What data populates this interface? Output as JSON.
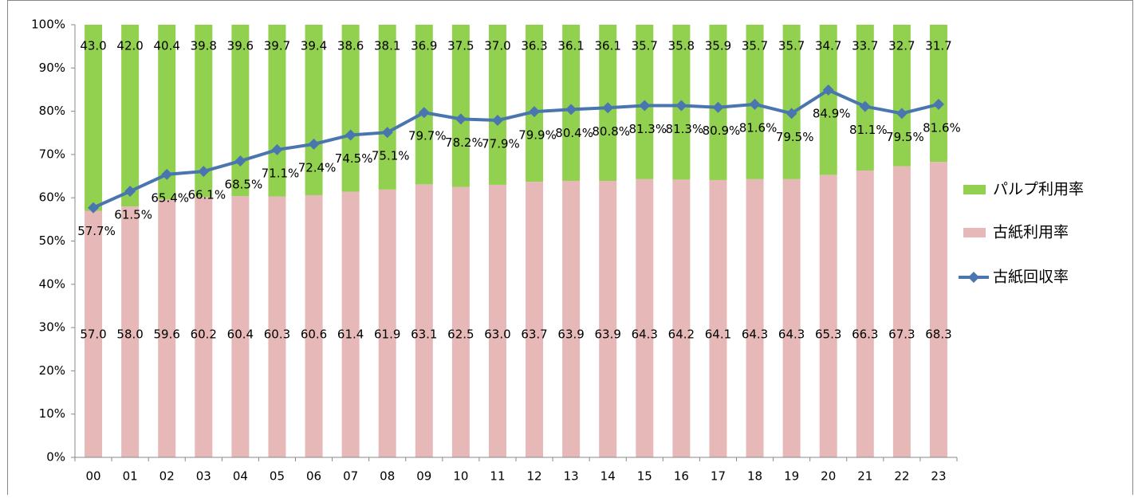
{
  "chart_data": {
    "type": "bar",
    "stacked": true,
    "categories": [
      "00",
      "01",
      "02",
      "03",
      "04",
      "05",
      "06",
      "07",
      "08",
      "09",
      "10",
      "11",
      "12",
      "13",
      "14",
      "15",
      "16",
      "17",
      "18",
      "19",
      "20",
      "21",
      "22",
      "23"
    ],
    "series": [
      {
        "name": "パルプ利用率",
        "color": "#92d050",
        "values": [
          43.0,
          42.0,
          40.4,
          39.8,
          39.6,
          39.7,
          39.4,
          38.6,
          38.1,
          36.9,
          37.5,
          37.0,
          36.3,
          36.1,
          36.1,
          35.7,
          35.8,
          35.9,
          35.7,
          35.7,
          34.7,
          33.7,
          32.7,
          31.7
        ],
        "value_labels": [
          "43.0",
          "42.0",
          "40.4",
          "39.8",
          "39.6",
          "39.7",
          "39.4",
          "38.6",
          "38.1",
          "36.9",
          "37.5",
          "37.0",
          "36.3",
          "36.1",
          "36.1",
          "35.7",
          "35.8",
          "35.9",
          "35.7",
          "35.7",
          "34.7",
          "33.7",
          "32.7",
          "31.7"
        ]
      },
      {
        "name": "古紙利用率",
        "color": "#e6b9b8",
        "values": [
          57.0,
          58.0,
          59.6,
          60.2,
          60.4,
          60.3,
          60.6,
          61.4,
          61.9,
          63.1,
          62.5,
          63.0,
          63.7,
          63.9,
          63.9,
          64.3,
          64.2,
          64.1,
          64.3,
          64.3,
          65.3,
          66.3,
          67.3,
          68.3
        ],
        "value_labels": [
          "57.0",
          "58.0",
          "59.6",
          "60.2",
          "60.4",
          "60.3",
          "60.6",
          "61.4",
          "61.9",
          "63.1",
          "62.5",
          "63.0",
          "63.7",
          "63.9",
          "63.9",
          "64.3",
          "64.2",
          "64.1",
          "64.3",
          "64.3",
          "65.3",
          "66.3",
          "67.3",
          "68.3"
        ]
      },
      {
        "name": "古紙回収率",
        "color": "#4a76b0",
        "kind": "line",
        "values": [
          57.7,
          61.5,
          65.4,
          66.1,
          68.5,
          71.1,
          72.4,
          74.5,
          75.1,
          79.7,
          78.2,
          77.9,
          79.9,
          80.4,
          80.8,
          81.3,
          81.3,
          80.9,
          81.6,
          79.5,
          84.9,
          81.1,
          79.5,
          81.6
        ],
        "value_labels": [
          "57.7%",
          "61.5%",
          "65.4%",
          "66.1%",
          "68.5%",
          "71.1%",
          "72.4%",
          "74.5%",
          "75.1%",
          "79.7%",
          "78.2%",
          "77.9%",
          "79.9%",
          "80.4%",
          "80.8%",
          "81.3%",
          "81.3%",
          "80.9%",
          "81.6%",
          "79.5%",
          "84.9%",
          "81.1%",
          "79.5%",
          "81.6%"
        ]
      }
    ],
    "ylim": [
      0,
      100
    ],
    "yticks": [
      {
        "value": 0,
        "label": "0%"
      },
      {
        "value": 10,
        "label": "10%"
      },
      {
        "value": 20,
        "label": "20%"
      },
      {
        "value": 30,
        "label": "30%"
      },
      {
        "value": 40,
        "label": "40%"
      },
      {
        "value": 50,
        "label": "50%"
      },
      {
        "value": 60,
        "label": "60%"
      },
      {
        "value": 70,
        "label": "70%"
      },
      {
        "value": 80,
        "label": "80%"
      },
      {
        "value": 90,
        "label": "90%"
      },
      {
        "value": 100,
        "label": "100%"
      }
    ],
    "legend": "right"
  }
}
